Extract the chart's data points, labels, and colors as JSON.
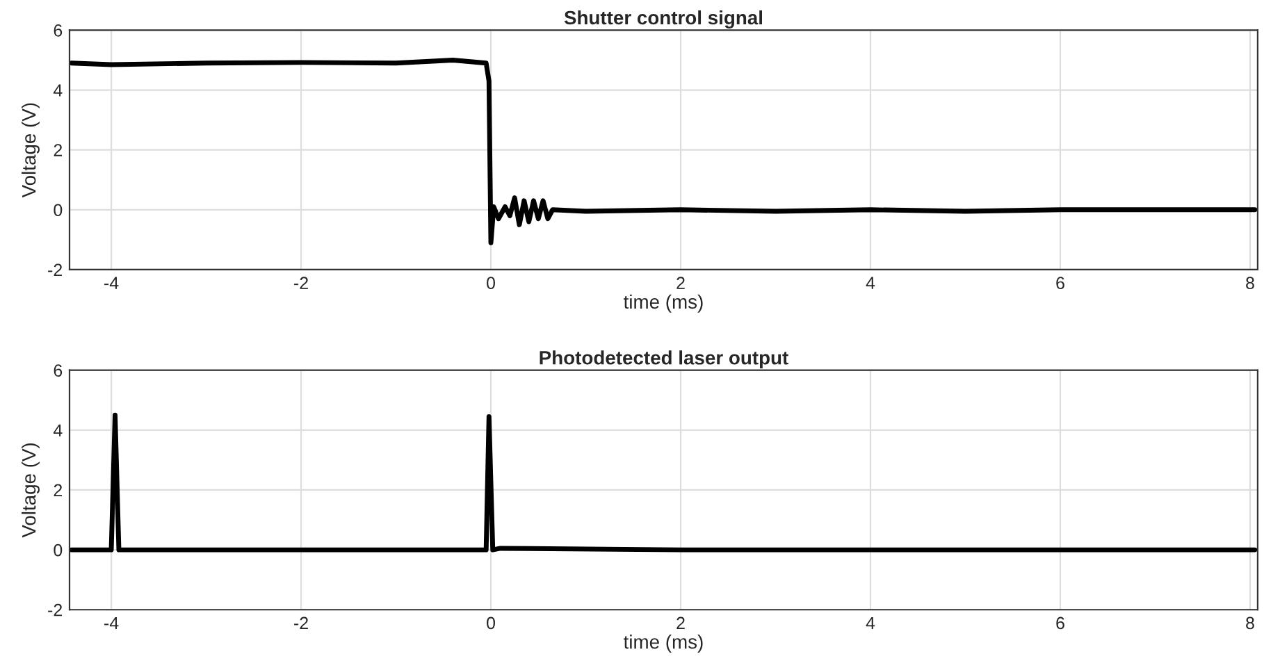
{
  "chart_data": [
    {
      "type": "line",
      "title": "Shutter control signal",
      "xlabel": "time (ms)",
      "ylabel": "Voltage (V)",
      "xlim": [
        -4.44,
        8.08
      ],
      "xticks": [
        -4,
        -2,
        0,
        2,
        4,
        6,
        8
      ],
      "ylim": [
        -2,
        6
      ],
      "yticks": [
        -2,
        0,
        2,
        4,
        6
      ],
      "grid": true,
      "series": [
        {
          "color": "#000000",
          "x": [
            -4.42,
            -4.0,
            -3.0,
            -2.0,
            -1.0,
            -0.4,
            -0.05,
            -0.02,
            0.0,
            0.03,
            0.08,
            0.15,
            0.2,
            0.25,
            0.3,
            0.35,
            0.4,
            0.45,
            0.5,
            0.55,
            0.6,
            0.65,
            1.0,
            2.0,
            3.0,
            4.0,
            5.0,
            6.0,
            7.0,
            8.05
          ],
          "values": [
            4.9,
            4.85,
            4.9,
            4.92,
            4.9,
            5.0,
            4.9,
            4.3,
            -1.1,
            0.1,
            -0.3,
            0.1,
            -0.2,
            0.4,
            -0.5,
            0.3,
            -0.4,
            0.3,
            -0.3,
            0.3,
            -0.3,
            0.0,
            -0.05,
            0.0,
            -0.05,
            0.0,
            -0.05,
            0.0,
            0.0,
            0.0
          ]
        }
      ]
    },
    {
      "type": "line",
      "title": "Photodetected laser output",
      "xlabel": "time (ms)",
      "ylabel": "Voltage (V)",
      "xlim": [
        -4.44,
        8.08
      ],
      "xticks": [
        -4,
        -2,
        0,
        2,
        4,
        6,
        8
      ],
      "ylim": [
        -2,
        6
      ],
      "yticks": [
        -2,
        0,
        2,
        4,
        6
      ],
      "grid": true,
      "series": [
        {
          "color": "#000000",
          "x": [
            -4.42,
            -4.0,
            -3.96,
            -3.92,
            -2.0,
            -0.05,
            -0.02,
            0.02,
            0.1,
            2.0,
            8.05
          ],
          "values": [
            0.0,
            0.0,
            4.5,
            0.0,
            0.0,
            0.0,
            4.45,
            0.0,
            0.05,
            0.0,
            0.0
          ]
        }
      ]
    }
  ]
}
